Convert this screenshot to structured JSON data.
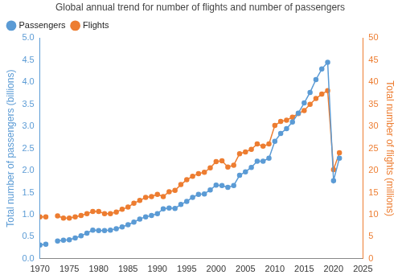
{
  "chart_data": {
    "type": "line",
    "title": "Global annual trend for number of flights and number of passengers",
    "y_label": "Total number of passengers (billions)",
    "y2_label": "Total number of flights (millions)",
    "x": [
      1970,
      1971,
      1972,
      1973,
      1974,
      1975,
      1976,
      1977,
      1978,
      1979,
      1980,
      1981,
      1982,
      1983,
      1984,
      1985,
      1986,
      1987,
      1988,
      1989,
      1990,
      1991,
      1992,
      1993,
      1994,
      1995,
      1996,
      1997,
      1998,
      1999,
      2000,
      2001,
      2002,
      2003,
      2004,
      2005,
      2006,
      2007,
      2008,
      2009,
      2010,
      2011,
      2012,
      2013,
      2014,
      2015,
      2016,
      2017,
      2018,
      2019,
      2020,
      2021
    ],
    "series": [
      {
        "name": "Passengers",
        "color": "#5b9bd5",
        "marker": "circle",
        "values": [
          0.31,
          0.33,
          null,
          0.4,
          0.42,
          0.43,
          0.47,
          0.52,
          0.58,
          0.65,
          0.64,
          0.64,
          0.65,
          0.68,
          0.72,
          0.77,
          0.83,
          0.9,
          0.95,
          0.98,
          1.02,
          1.13,
          1.15,
          1.14,
          1.23,
          1.3,
          1.39,
          1.46,
          1.47,
          1.56,
          1.67,
          1.66,
          1.62,
          1.66,
          1.89,
          1.97,
          2.07,
          2.21,
          2.21,
          2.28,
          2.66,
          2.84,
          2.95,
          3.1,
          3.3,
          3.53,
          3.77,
          4.06,
          4.3,
          4.45,
          1.77,
          2.28
        ]
      },
      {
        "name": "Flights",
        "color": "#ed7d31",
        "marker": "circle",
        "axis": "y2",
        "values": [
          9.5,
          9.5,
          null,
          9.7,
          9.2,
          9.2,
          9.5,
          9.8,
          10.2,
          10.7,
          10.7,
          10.2,
          10.2,
          10.6,
          11.2,
          11.7,
          12.6,
          13.2,
          13.9,
          14.1,
          14.6,
          14.1,
          15.2,
          15.5,
          16.8,
          17.9,
          18.7,
          19.3,
          19.6,
          20.6,
          22.0,
          22.2,
          20.8,
          21.2,
          23.8,
          24.2,
          24.8,
          26.0,
          25.5,
          26.0,
          30.2,
          31.1,
          31.4,
          32.1,
          32.9,
          33.6,
          35.0,
          36.3,
          37.3,
          38.1,
          20.2,
          24.0
        ]
      }
    ],
    "xlim": [
      1970,
      2025
    ],
    "xticks": [
      1970,
      1975,
      1980,
      1985,
      1990,
      1995,
      2000,
      2005,
      2010,
      2015,
      2020,
      2025
    ],
    "ylim": [
      0,
      5
    ],
    "yticks": [
      {
        "value": 0,
        "label": "0.0"
      },
      {
        "value": 0.5,
        "label": "0.5"
      },
      {
        "value": 1,
        "label": "1.0"
      },
      {
        "value": 1.5,
        "label": "1.5"
      },
      {
        "value": 2,
        "label": "2.0"
      },
      {
        "value": 2.5,
        "label": "2.5"
      },
      {
        "value": 3,
        "label": "3.0"
      },
      {
        "value": 3.5,
        "label": "3.5"
      },
      {
        "value": 4,
        "label": "4.0"
      },
      {
        "value": 4.5,
        "label": "4.5"
      },
      {
        "value": 5,
        "label": "5.0"
      }
    ],
    "y2lim": [
      0,
      50
    ],
    "y2ticks": [
      0,
      5,
      10,
      15,
      20,
      25,
      30,
      35,
      40,
      45,
      50
    ],
    "grid": false,
    "legend": "top left"
  }
}
